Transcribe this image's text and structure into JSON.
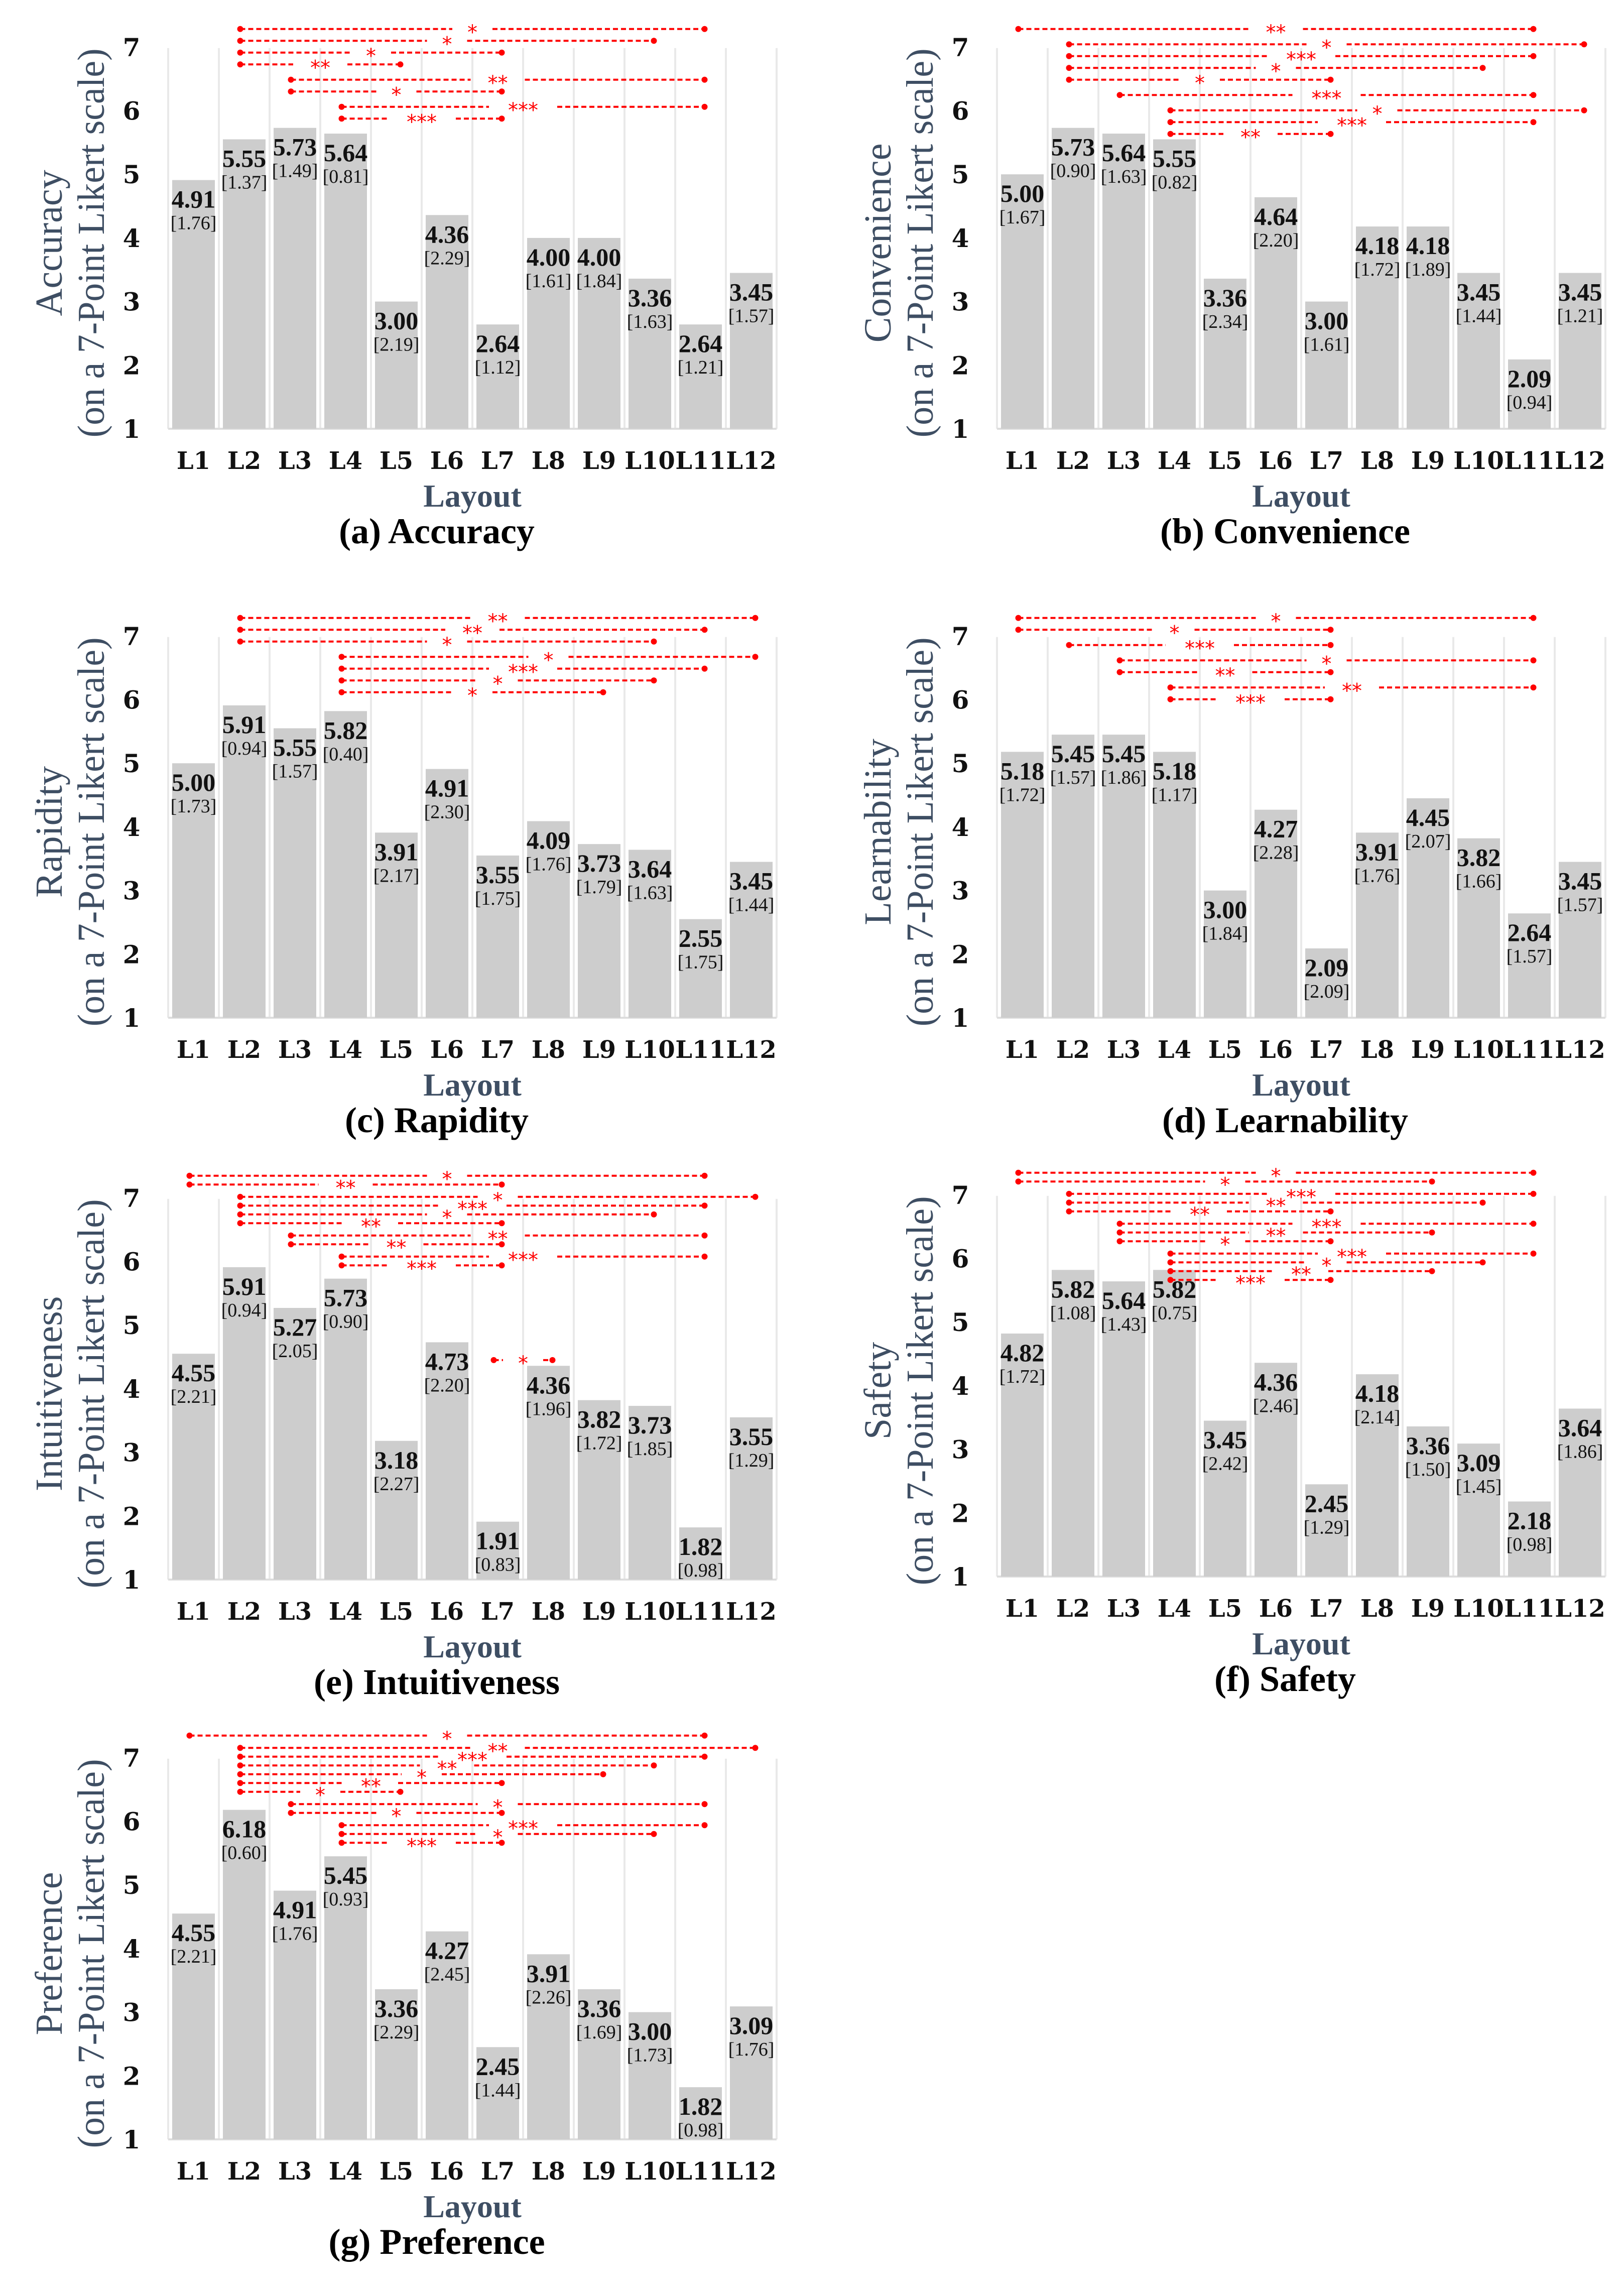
{
  "chart_data": [
    {
      "type": "bar",
      "title": "(a) Accuracy",
      "ylabel": [
        "Accuracy",
        "(on a 7-Point Likert scale)"
      ],
      "xlabel": "Layout",
      "ylim": [
        1,
        7
      ],
      "yticks": [
        "1",
        "2",
        "3",
        "4",
        "5",
        "6",
        "7"
      ],
      "categories": [
        "L1",
        "L2",
        "L3",
        "L4",
        "L5",
        "L6",
        "L7",
        "L8",
        "L9",
        "L10",
        "L11",
        "L12"
      ],
      "values": [
        4.91,
        5.55,
        5.73,
        5.64,
        3.0,
        4.36,
        2.64,
        4.0,
        4.0,
        3.36,
        2.64,
        3.45
      ],
      "sd": [
        1.76,
        1.37,
        1.49,
        0.81,
        2.19,
        2.29,
        1.12,
        1.61,
        1.84,
        1.63,
        1.21,
        1.57
      ],
      "bar_color": "#cdcdcd",
      "significance": [
        {
          "from": "L2",
          "to": "L11",
          "label": "*"
        },
        {
          "from": "L2",
          "to": "L10",
          "label": "*"
        },
        {
          "from": "L2",
          "to": "L7",
          "label": "*"
        },
        {
          "from": "L2",
          "to": "L5",
          "label": "**"
        },
        {
          "from": "L3",
          "to": "L11",
          "label": "**"
        },
        {
          "from": "L3",
          "to": "L7",
          "label": "*"
        },
        {
          "from": "L4",
          "to": "L11",
          "label": "***"
        },
        {
          "from": "L4",
          "to": "L7",
          "label": "***"
        }
      ],
      "extra_significance": []
    },
    {
      "type": "bar",
      "title": "(b) Convenience",
      "ylabel": [
        "Convenience",
        "(on a 7-Point Likert scale)"
      ],
      "xlabel": "Layout",
      "ylim": [
        1,
        7
      ],
      "yticks": [
        "1",
        "2",
        "3",
        "4",
        "5",
        "6",
        "7"
      ],
      "categories": [
        "L1",
        "L2",
        "L3",
        "L4",
        "L5",
        "L6",
        "L7",
        "L8",
        "L9",
        "L10",
        "L11",
        "L12"
      ],
      "values": [
        5.0,
        5.73,
        5.64,
        5.55,
        3.36,
        4.64,
        3.0,
        4.18,
        4.18,
        3.45,
        2.09,
        3.45
      ],
      "sd": [
        1.67,
        0.9,
        1.63,
        0.82,
        2.34,
        2.2,
        1.61,
        1.72,
        1.89,
        1.44,
        0.94,
        1.21
      ],
      "bar_color": "#cdcdcd",
      "significance": [
        {
          "from": "L1",
          "to": "L11",
          "label": "**"
        },
        {
          "from": "L2",
          "to": "L12",
          "label": "*"
        },
        {
          "from": "L2",
          "to": "L11",
          "label": "***"
        },
        {
          "from": "L2",
          "to": "L10",
          "label": "*"
        },
        {
          "from": "L2",
          "to": "L7",
          "label": "*"
        },
        {
          "from": "L3",
          "to": "L11",
          "label": "***"
        },
        {
          "from": "L4",
          "to": "L12",
          "label": "*"
        },
        {
          "from": "L4",
          "to": "L11",
          "label": "***"
        },
        {
          "from": "L4",
          "to": "L7",
          "label": "**"
        }
      ],
      "extra_significance": []
    },
    {
      "type": "bar",
      "title": "(c) Rapidity",
      "ylabel": [
        "Rapidity",
        "(on a 7-Point Likert scale)"
      ],
      "xlabel": "Layout",
      "ylim": [
        1,
        7
      ],
      "yticks": [
        "1",
        "2",
        "3",
        "4",
        "5",
        "6",
        "7"
      ],
      "categories": [
        "L1",
        "L2",
        "L3",
        "L4",
        "L5",
        "L6",
        "L7",
        "L8",
        "L9",
        "L10",
        "L11",
        "L12"
      ],
      "values": [
        5.0,
        5.91,
        5.55,
        5.82,
        3.91,
        4.91,
        3.55,
        4.09,
        3.73,
        3.64,
        2.55,
        3.45
      ],
      "sd": [
        1.73,
        0.94,
        1.57,
        0.4,
        2.17,
        2.3,
        1.75,
        1.76,
        1.79,
        1.63,
        1.75,
        1.44
      ],
      "bar_color": "#cdcdcd",
      "significance": [
        {
          "from": "L2",
          "to": "L12",
          "label": "**"
        },
        {
          "from": "L2",
          "to": "L11",
          "label": "**"
        },
        {
          "from": "L2",
          "to": "L10",
          "label": "*"
        },
        {
          "from": "L4",
          "to": "L12",
          "label": "*"
        },
        {
          "from": "L4",
          "to": "L11",
          "label": "***"
        },
        {
          "from": "L4",
          "to": "L10",
          "label": "*"
        },
        {
          "from": "L4",
          "to": "L9",
          "label": "*"
        }
      ],
      "extra_significance": []
    },
    {
      "type": "bar",
      "title": "(d) Learnability",
      "ylabel": [
        "Learnability",
        "(on a 7-Point Likert scale)"
      ],
      "xlabel": "Layout",
      "ylim": [
        1,
        7
      ],
      "yticks": [
        "1",
        "2",
        "3",
        "4",
        "5",
        "6",
        "7"
      ],
      "categories": [
        "L1",
        "L2",
        "L3",
        "L4",
        "L5",
        "L6",
        "L7",
        "L8",
        "L9",
        "L10",
        "L11",
        "L12"
      ],
      "values": [
        5.18,
        5.45,
        5.45,
        5.18,
        3.0,
        4.27,
        2.09,
        3.91,
        4.45,
        3.82,
        2.64,
        3.45
      ],
      "sd": [
        1.72,
        1.57,
        1.86,
        1.17,
        1.84,
        2.28,
        2.09,
        1.76,
        2.07,
        1.66,
        1.57,
        1.57
      ],
      "bar_color": "#cdcdcd",
      "significance": [
        {
          "from": "L1",
          "to": "L11",
          "label": "*"
        },
        {
          "from": "L1",
          "to": "L7",
          "label": "*"
        },
        {
          "from": "L2",
          "to": "L7",
          "label": "***"
        },
        {
          "from": "L3",
          "to": "L11",
          "label": "*"
        },
        {
          "from": "L3",
          "to": "L7",
          "label": "**"
        },
        {
          "from": "L4",
          "to": "L11",
          "label": "**"
        },
        {
          "from": "L4",
          "to": "L7",
          "label": "***"
        }
      ],
      "extra_significance": []
    },
    {
      "type": "bar",
      "title": "(e) Intuitiveness",
      "ylabel": [
        "Intuitiveness",
        "(on a 7-Point Likert scale)"
      ],
      "xlabel": "Layout",
      "ylim": [
        1,
        7
      ],
      "yticks": [
        "1",
        "2",
        "3",
        "4",
        "5",
        "6",
        "7"
      ],
      "categories": [
        "L1",
        "L2",
        "L3",
        "L4",
        "L5",
        "L6",
        "L7",
        "L8",
        "L9",
        "L10",
        "L11",
        "L12"
      ],
      "values": [
        4.55,
        5.91,
        5.27,
        5.73,
        3.18,
        4.73,
        1.91,
        4.36,
        3.82,
        3.73,
        1.82,
        3.55
      ],
      "sd": [
        2.21,
        0.94,
        2.05,
        0.9,
        2.27,
        2.2,
        0.83,
        1.96,
        1.72,
        1.85,
        0.98,
        1.29
      ],
      "bar_color": "#cdcdcd",
      "significance": [
        {
          "from": "L1",
          "to": "L11",
          "label": "*"
        },
        {
          "from": "L1",
          "to": "L7",
          "label": "**"
        },
        {
          "from": "L2",
          "to": "L12",
          "label": "*"
        },
        {
          "from": "L2",
          "to": "L11",
          "label": "***"
        },
        {
          "from": "L2",
          "to": "L10",
          "label": "*"
        },
        {
          "from": "L2",
          "to": "L7",
          "label": "**"
        },
        {
          "from": "L3",
          "to": "L11",
          "label": "**"
        },
        {
          "from": "L3",
          "to": "L7",
          "label": "**"
        },
        {
          "from": "L4",
          "to": "L11",
          "label": "***"
        },
        {
          "from": "L4",
          "to": "L7",
          "label": "***"
        }
      ],
      "extra_significance": [
        {
          "from": "L7",
          "to": "L8",
          "label": "*"
        }
      ]
    },
    {
      "type": "bar",
      "title": "(f) Safety",
      "ylabel": [
        "Safety",
        "(on a 7-Point Likert scale)"
      ],
      "xlabel": "Layout",
      "ylim": [
        1,
        7
      ],
      "yticks": [
        "1",
        "2",
        "3",
        "4",
        "5",
        "6",
        "7"
      ],
      "categories": [
        "L1",
        "L2",
        "L3",
        "L4",
        "L5",
        "L6",
        "L7",
        "L8",
        "L9",
        "L10",
        "L11",
        "L12"
      ],
      "values": [
        4.82,
        5.82,
        5.64,
        5.82,
        3.45,
        4.36,
        2.45,
        4.18,
        3.36,
        3.09,
        2.18,
        3.64
      ],
      "sd": [
        1.72,
        1.08,
        1.43,
        0.75,
        2.42,
        2.46,
        1.29,
        2.14,
        1.5,
        1.45,
        0.98,
        1.86
      ],
      "bar_color": "#cdcdcd",
      "significance": [
        {
          "from": "L1",
          "to": "L11",
          "label": "*"
        },
        {
          "from": "L1",
          "to": "L9",
          "label": "*"
        },
        {
          "from": "L2",
          "to": "L11",
          "label": "***"
        },
        {
          "from": "L2",
          "to": "L10",
          "label": "**"
        },
        {
          "from": "L2",
          "to": "L7",
          "label": "**"
        },
        {
          "from": "L3",
          "to": "L11",
          "label": "***"
        },
        {
          "from": "L3",
          "to": "L9",
          "label": "**"
        },
        {
          "from": "L3",
          "to": "L7",
          "label": "*"
        },
        {
          "from": "L4",
          "to": "L11",
          "label": "***"
        },
        {
          "from": "L4",
          "to": "L10",
          "label": "*"
        },
        {
          "from": "L4",
          "to": "L9",
          "label": "**"
        },
        {
          "from": "L4",
          "to": "L7",
          "label": "***"
        }
      ],
      "extra_significance": []
    },
    {
      "type": "bar",
      "title": "(g) Preference",
      "ylabel": [
        "Preference",
        "(on a 7-Point Likert scale)"
      ],
      "xlabel": "Layout",
      "ylim": [
        1,
        7
      ],
      "yticks": [
        "1",
        "2",
        "3",
        "4",
        "5",
        "6",
        "7"
      ],
      "categories": [
        "L1",
        "L2",
        "L3",
        "L4",
        "L5",
        "L6",
        "L7",
        "L8",
        "L9",
        "L10",
        "L11",
        "L12"
      ],
      "values": [
        4.55,
        6.18,
        4.91,
        5.45,
        3.36,
        4.27,
        2.45,
        3.91,
        3.36,
        3.0,
        1.82,
        3.09
      ],
      "sd": [
        2.21,
        0.6,
        1.76,
        0.93,
        2.29,
        2.45,
        1.44,
        2.26,
        1.69,
        1.73,
        0.98,
        1.76
      ],
      "bar_color": "#cdcdcd",
      "significance": [
        {
          "from": "L1",
          "to": "L11",
          "label": "*"
        },
        {
          "from": "L2",
          "to": "L12",
          "label": "**"
        },
        {
          "from": "L2",
          "to": "L11",
          "label": "***"
        },
        {
          "from": "L2",
          "to": "L10",
          "label": "**"
        },
        {
          "from": "L2",
          "to": "L9",
          "label": "*"
        },
        {
          "from": "L2",
          "to": "L7",
          "label": "**"
        },
        {
          "from": "L2",
          "to": "L5",
          "label": "*"
        },
        {
          "from": "L3",
          "to": "L11",
          "label": "*"
        },
        {
          "from": "L3",
          "to": "L7",
          "label": "*"
        },
        {
          "from": "L4",
          "to": "L11",
          "label": "***"
        },
        {
          "from": "L4",
          "to": "L10",
          "label": "*"
        },
        {
          "from": "L4",
          "to": "L7",
          "label": "***"
        }
      ],
      "extra_significance": []
    }
  ],
  "colors": {
    "bar": "#cdcdcd",
    "significance": "#ff0000",
    "axis_title": "#3e4e63",
    "grid": "#e9e9e9"
  }
}
